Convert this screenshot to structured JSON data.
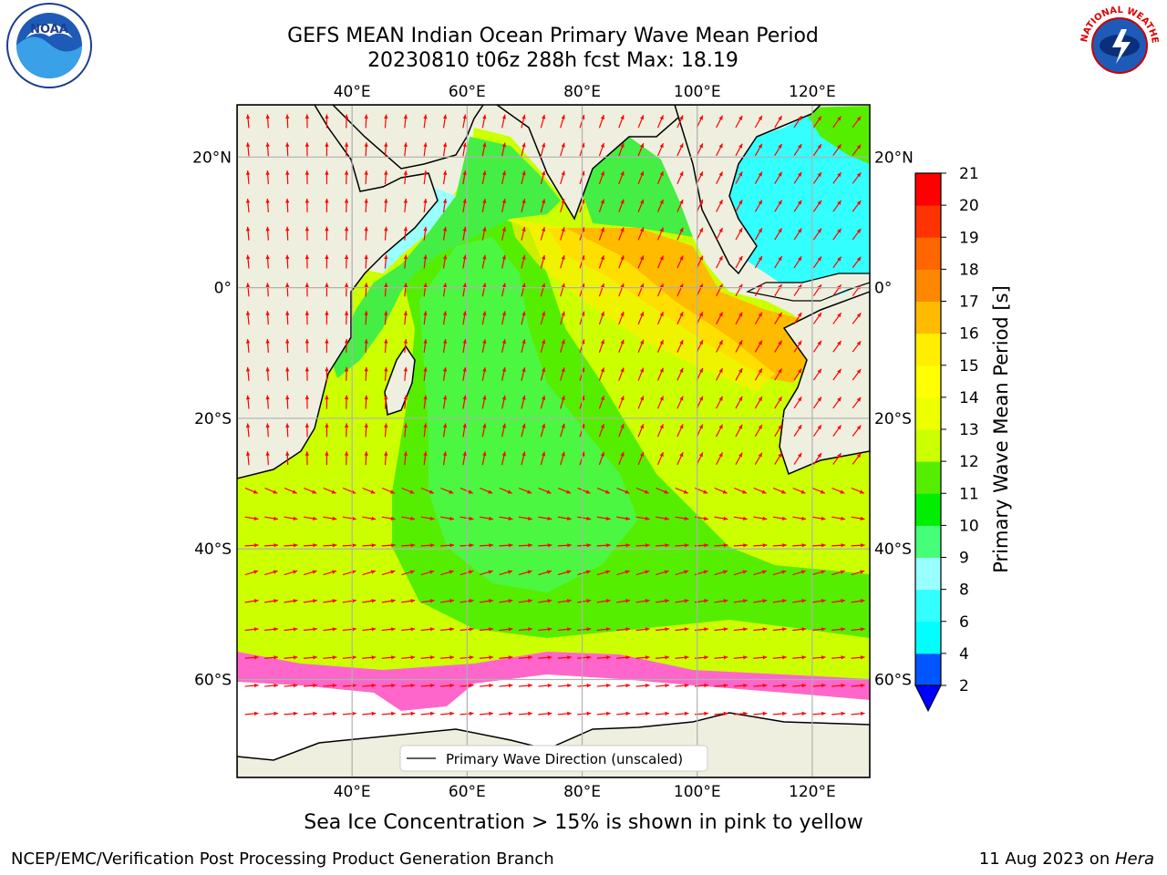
{
  "header": {
    "title_line1": "GEFS MEAN Indian Ocean Primary Wave Mean Period",
    "title_line2": "20230810 t06z 288h fcst   Max: 18.19"
  },
  "map": {
    "lon_labels": [
      "40°E",
      "60°E",
      "80°E",
      "100°E",
      "120°E"
    ],
    "lon_values": [
      40,
      60,
      80,
      100,
      120
    ],
    "lat_labels": [
      "20°N",
      "0°",
      "20°S",
      "40°S",
      "60°S"
    ],
    "lat_values": [
      20,
      0,
      -20,
      -40,
      -60
    ],
    "extent": {
      "lon_min": 20,
      "lon_max": 130,
      "lat_min": -75,
      "lat_max": 28
    },
    "land_color": "#efefdf",
    "arrow_color": "#ff0000",
    "legend_label": "Primary Wave Direction (unscaled)"
  },
  "colorbar": {
    "label": "Primary Wave Mean Period [s]",
    "ticks": [
      "2",
      "4",
      "6",
      "8",
      "9",
      "10",
      "11",
      "12",
      "13",
      "14",
      "15",
      "16",
      "17",
      "18",
      "19",
      "20",
      "21"
    ],
    "colors": [
      "#0055ff",
      "#00ffff",
      "#33ffff",
      "#99ffff",
      "#44ff77",
      "#00ee00",
      "#55ee00",
      "#ccff00",
      "#eeff00",
      "#ffff00",
      "#ffee00",
      "#ffbb00",
      "#ff8800",
      "#ff6600",
      "#ff3300",
      "#ff0000"
    ],
    "extend_color": "#0000ff"
  },
  "caption": "Sea Ice Concentration > 15% is shown in pink to yellow",
  "footer": {
    "left": "NCEP/EMC/Verification Post Processing Product Generation Branch",
    "right_prefix": "11 Aug 2023 on ",
    "right_system": "Hera"
  },
  "logos": {
    "noaa_text": "NOAA",
    "nws_text": "NATIONAL WEATHER SERVICE"
  }
}
